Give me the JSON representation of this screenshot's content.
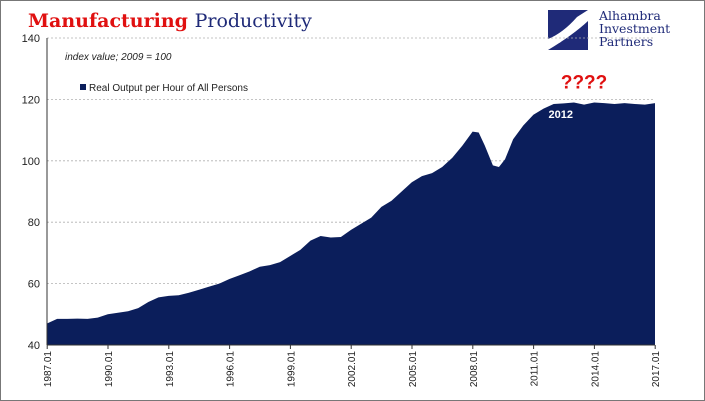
{
  "title": {
    "part1": "Manufacturing",
    "part2": "Productivity"
  },
  "logo": {
    "lines": [
      "Alhambra",
      "Investment",
      "Partners"
    ],
    "icon": "alhambra-logo-icon",
    "color": "#1f2a78"
  },
  "colors": {
    "area": "#0b1e5b",
    "title_red": "#e01010",
    "title_blue": "#1f2a78",
    "annotation_red": "#e01010",
    "grid": "#b0b0b0"
  },
  "chart_data": {
    "type": "area",
    "subtitle": "index value; 2009 = 100",
    "legend": "Real Output per Hour of All Persons",
    "legend_placement": "top-left",
    "ylim": [
      40,
      140
    ],
    "yticks": [
      40,
      60,
      80,
      100,
      120,
      140
    ],
    "xlim": [
      1987.0,
      2017.0
    ],
    "xticks": [
      "1987.01",
      "1990.01",
      "1993.01",
      "1996.01",
      "1999.01",
      "2002.01",
      "2005.01",
      "2008.01",
      "2011.01",
      "2014.01",
      "2017.01"
    ],
    "gridlines": "horizontal dashed",
    "annotations": [
      {
        "text": "2012",
        "x": 2012.35,
        "y": 114,
        "color": "#ffffff"
      },
      {
        "text": "????",
        "x": 2013.5,
        "y": 123.5,
        "color": "#e01010"
      }
    ],
    "series": [
      {
        "name": "Real Output per Hour of All Persons",
        "x": [
          1987.0,
          1987.5,
          1988.0,
          1988.5,
          1989.0,
          1989.5,
          1990.0,
          1990.5,
          1991.0,
          1991.5,
          1992.0,
          1992.5,
          1993.0,
          1993.5,
          1994.0,
          1994.5,
          1995.0,
          1995.5,
          1996.0,
          1996.5,
          1997.0,
          1997.5,
          1998.0,
          1998.5,
          1999.0,
          1999.5,
          2000.0,
          2000.5,
          2001.0,
          2001.5,
          2002.0,
          2002.5,
          2003.0,
          2003.5,
          2004.0,
          2004.5,
          2005.0,
          2005.5,
          2006.0,
          2006.5,
          2007.0,
          2007.5,
          2008.0,
          2008.3,
          2008.6,
          2009.0,
          2009.3,
          2009.6,
          2010.0,
          2010.5,
          2011.0,
          2011.5,
          2012.0,
          2012.5,
          2013.0,
          2013.5,
          2014.0,
          2014.5,
          2015.0,
          2015.5,
          2016.0,
          2016.5,
          2017.0
        ],
        "values": [
          47,
          48.5,
          48.5,
          48.6,
          48.5,
          48.9,
          50,
          50.5,
          51,
          52,
          54,
          55.5,
          56,
          56.2,
          57,
          58,
          59,
          60,
          61.5,
          62.7,
          64,
          65.5,
          66,
          67,
          69,
          71,
          74,
          75.5,
          75,
          75.2,
          77.5,
          79.5,
          81.5,
          85,
          87,
          90,
          93,
          95,
          96,
          98,
          101,
          105,
          109.5,
          109.2,
          105,
          98.5,
          98,
          100.5,
          107,
          111.5,
          115,
          117,
          118.5,
          118.7,
          119,
          118.3,
          119,
          118.8,
          118.5,
          118.8,
          118.5,
          118.3,
          118.8
        ]
      }
    ]
  }
}
